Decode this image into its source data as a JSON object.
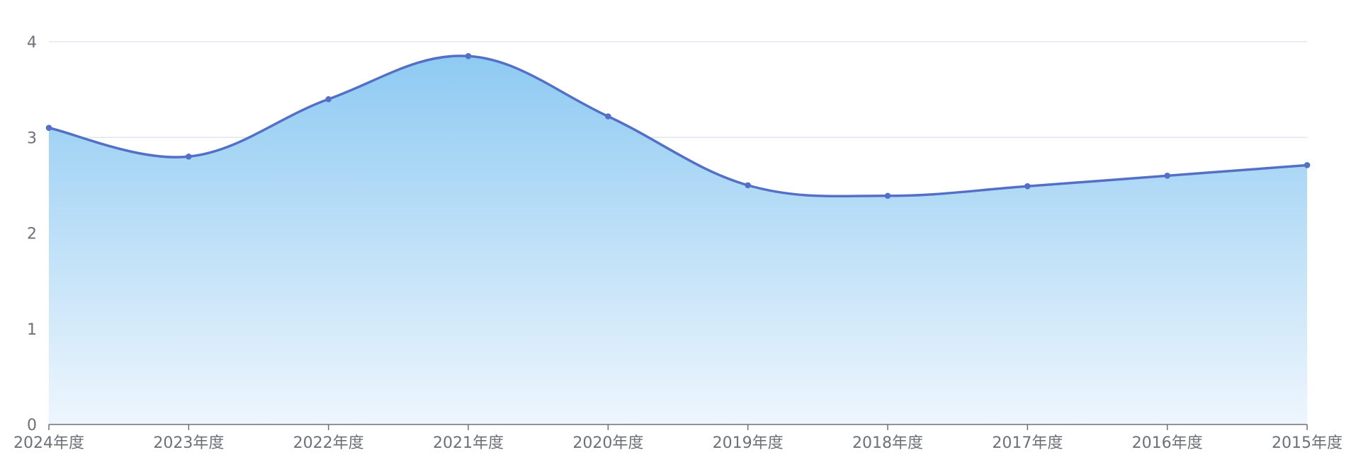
{
  "chart_data": {
    "type": "area",
    "title": "",
    "xlabel": "",
    "ylabel": "",
    "categories": [
      "2024年度",
      "2023年度",
      "2022年度",
      "2021年度",
      "2020年度",
      "2019年度",
      "2018年度",
      "2017年度",
      "2016年度",
      "2015年度"
    ],
    "series": [
      {
        "values": [
          3.1,
          2.8,
          3.4,
          3.85,
          3.22,
          2.5,
          2.39,
          2.49,
          2.6,
          2.71
        ]
      }
    ],
    "ylim": [
      0,
      4
    ],
    "yticks": [
      "0",
      "1",
      "2",
      "3",
      "4"
    ],
    "grid": true,
    "legend": "none",
    "colors": {
      "line": "#5470c6",
      "area_top": "#8ecaf2",
      "area_bottom": "#eef6fd",
      "grid": "#e0e6f1",
      "axis": "#6e7079"
    }
  }
}
